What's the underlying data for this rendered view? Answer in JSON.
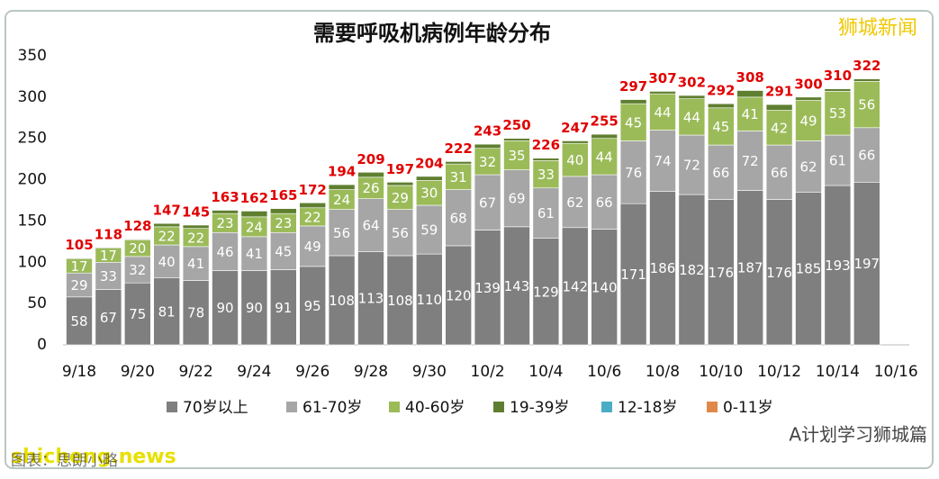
{
  "chart_data": {
    "type": "stacked-bar",
    "title": "需要呼吸机病例年龄分布",
    "categories": [
      "9/18",
      null,
      "9/20",
      null,
      "9/22",
      null,
      "9/24",
      null,
      "9/26",
      null,
      "9/28",
      null,
      "9/30",
      null,
      "10/2",
      null,
      "10/4",
      null,
      "10/6",
      null,
      "10/8",
      null,
      "10/10",
      null,
      "10/12",
      null,
      "10/14",
      null,
      "10/16"
    ],
    "series": [
      {
        "name": "70岁以上",
        "color": "#7f7f7f",
        "values": [
          58,
          67,
          75,
          81,
          78,
          90,
          90,
          91,
          95,
          108,
          113,
          108,
          110,
          120,
          139,
          143,
          129,
          142,
          140,
          171,
          186,
          182,
          176,
          187,
          176,
          185,
          193,
          197,
          null
        ]
      },
      {
        "name": "61-70岁",
        "color": "#a6a6a6",
        "values": [
          29,
          33,
          32,
          40,
          41,
          46,
          41,
          45,
          49,
          56,
          64,
          56,
          59,
          68,
          67,
          69,
          61,
          62,
          66,
          76,
          74,
          72,
          66,
          72,
          66,
          62,
          61,
          66,
          null
        ]
      },
      {
        "name": "40-60岁",
        "color": "#9bbb59",
        "values": [
          17,
          17,
          20,
          22,
          22,
          23,
          24,
          23,
          22,
          24,
          26,
          29,
          30,
          31,
          32,
          35,
          33,
          40,
          44,
          45,
          44,
          44,
          45,
          41,
          42,
          49,
          53,
          56,
          null
        ]
      },
      {
        "name": "19-39岁",
        "color": "#5f7f30",
        "values": [
          1,
          1,
          1,
          4,
          4,
          4,
          7,
          6,
          6,
          6,
          6,
          4,
          5,
          3,
          5,
          3,
          3,
          3,
          5,
          5,
          3,
          4,
          5,
          8,
          7,
          4,
          3,
          3,
          null
        ]
      },
      {
        "name": "12-18岁",
        "color": "#4bacc6",
        "values": [
          0,
          0,
          0,
          0,
          0,
          0,
          0,
          0,
          0,
          0,
          0,
          0,
          0,
          0,
          0,
          0,
          0,
          0,
          0,
          0,
          0,
          0,
          0,
          0,
          0,
          0,
          0,
          0,
          null
        ]
      },
      {
        "name": "0-11岁",
        "color": "#e0884a",
        "values": [
          0,
          0,
          0,
          0,
          0,
          0,
          0,
          0,
          0,
          0,
          0,
          0,
          0,
          0,
          0,
          0,
          0,
          0,
          0,
          0,
          0,
          0,
          0,
          0,
          0,
          0,
          0,
          0,
          null
        ]
      }
    ],
    "totals": [
      105,
      118,
      128,
      147,
      145,
      163,
      162,
      165,
      172,
      194,
      209,
      197,
      204,
      222,
      243,
      250,
      226,
      247,
      255,
      297,
      307,
      302,
      292,
      308,
      291,
      300,
      310,
      322,
      null
    ],
    "ylim": [
      0,
      350
    ],
    "yticks": [
      0,
      50,
      100,
      150,
      200,
      250,
      300,
      350
    ],
    "grid": false,
    "watermarks": [
      "狮城新闻",
      "A计划学习狮城篇",
      "shicheng.news",
      "图表：思朗小略"
    ]
  }
}
